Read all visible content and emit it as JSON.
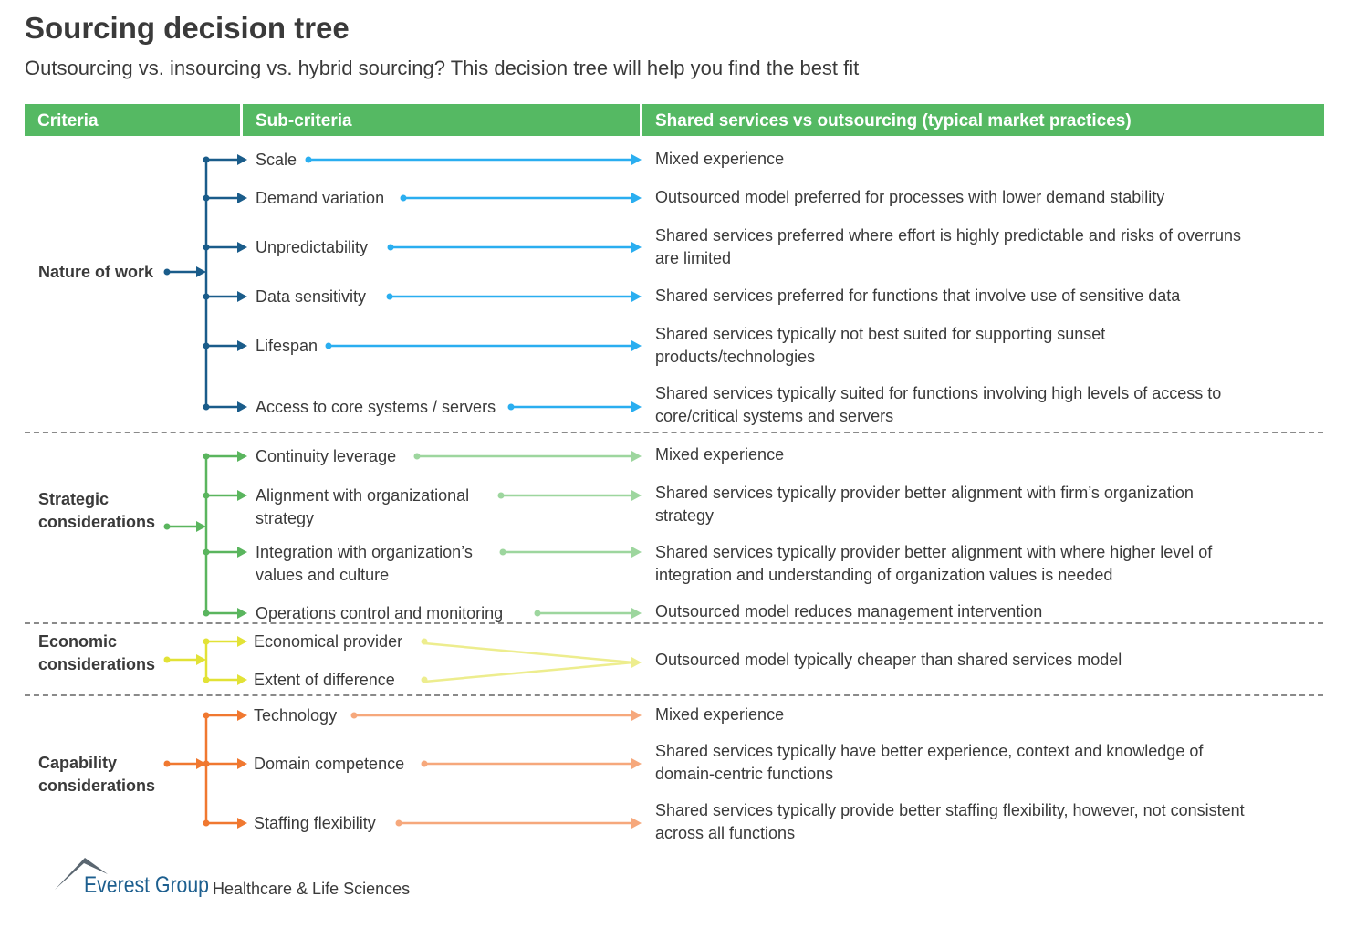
{
  "title": "Sourcing decision tree",
  "subtitle": "Outsourcing vs. insourcing vs. hybrid sourcing? This decision tree will help you find the best fit",
  "headers": [
    "Criteria",
    "Sub-criteria",
    "Shared services vs outsourcing (typical market practices)"
  ],
  "colors": {
    "header": "#55b963",
    "divider": "#8a8a8a"
  },
  "groups": [
    {
      "criteria": [
        "Nature of work"
      ],
      "tree_color": "#1a5c8a",
      "arrow_color": "#2aaef0",
      "rows": [
        {
          "sub": [
            "Scale"
          ],
          "practice": [
            "Mixed experience"
          ]
        },
        {
          "sub": [
            "Demand variation"
          ],
          "practice": [
            "Outsourced model preferred for processes with lower demand stability"
          ]
        },
        {
          "sub": [
            "Unpredictability"
          ],
          "practice": [
            "Shared services preferred where effort is highly predictable and risks of overruns",
            "are limited"
          ]
        },
        {
          "sub": [
            "Data sensitivity"
          ],
          "practice": [
            "Shared services preferred for functions that involve use of sensitive data"
          ]
        },
        {
          "sub": [
            "Lifespan"
          ],
          "practice": [
            "Shared services typically not best suited for supporting sunset",
            "products/technologies"
          ]
        },
        {
          "sub": [
            "Access to core systems / servers"
          ],
          "practice": [
            "Shared services typically suited for functions involving high levels of access to",
            "core/critical systems and servers"
          ]
        }
      ]
    },
    {
      "criteria": [
        "Strategic",
        "considerations"
      ],
      "tree_color": "#5ab55e",
      "arrow_color": "#9dd69e",
      "rows": [
        {
          "sub": [
            "Continuity leverage"
          ],
          "practice": [
            "Mixed experience"
          ]
        },
        {
          "sub": [
            "Alignment with organizational",
            "strategy"
          ],
          "practice": [
            "Shared services typically provider better alignment with firm’s organization",
            "strategy"
          ]
        },
        {
          "sub": [
            "Integration with organization’s",
            "values and culture"
          ],
          "practice": [
            "Shared services typically provider better alignment with where higher level of",
            "integration and understanding of organization values is needed"
          ]
        },
        {
          "sub": [
            "Operations control and monitoring"
          ],
          "practice": [
            "Outsourced model reduces management intervention"
          ]
        }
      ]
    },
    {
      "criteria": [
        "Economic",
        "considerations"
      ],
      "tree_color": "#e2e236",
      "arrow_color": "#eded8e",
      "rows": [
        {
          "sub": [
            "Economical provider"
          ],
          "practice": [
            "Outsourced model typically cheaper than shared services model"
          ]
        },
        {
          "sub": [
            "Extent of difference"
          ],
          "practice": []
        }
      ]
    },
    {
      "criteria": [
        "Capability",
        "considerations"
      ],
      "tree_color": "#f07830",
      "arrow_color": "#f6a87c",
      "rows": [
        {
          "sub": [
            "Technology"
          ],
          "practice": [
            "Mixed experience"
          ]
        },
        {
          "sub": [
            "Domain competence"
          ],
          "practice": [
            "Shared services typically have better experience, context and knowledge of",
            "domain-centric functions"
          ]
        },
        {
          "sub": [
            "Staffing flexibility"
          ],
          "practice": [
            "Shared services typically provide better staffing flexibility, however, not consistent",
            "across all functions"
          ]
        }
      ]
    }
  ],
  "logo": {
    "brand": "Everest Group",
    "tagline": "Healthcare & Life Sciences",
    "brand_color": "#1d5f8f"
  }
}
